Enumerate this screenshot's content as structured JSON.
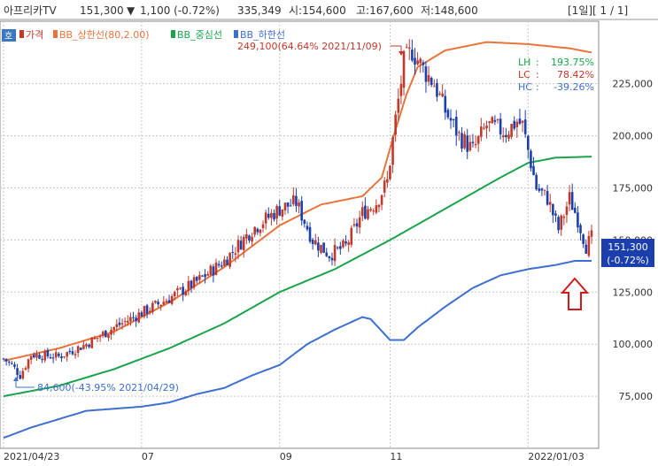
{
  "header": {
    "name": "아프리카TV",
    "price": "151,300",
    "change_arrow": "▼",
    "change": "1,100 (-0.72%)",
    "volume": "335,349",
    "open": "시:154,600",
    "high": "고:167,600",
    "low": "저:148,600",
    "pager": "[1일][ 1 / 1]"
  },
  "ho_button": "호",
  "legend": {
    "items": [
      {
        "label": "가격",
        "color": "#c0392b"
      },
      {
        "label": "BB_상한선(80,2.00)",
        "color": "#e8743b"
      },
      {
        "label": "BB_중심선",
        "color": "#1aa34a"
      },
      {
        "label": "BB_하한선",
        "color": "#3d6fd0"
      }
    ]
  },
  "annotations": {
    "max": "249,100(64.64% 2021/11/09)",
    "min": "84,600(-43.95% 2021/04/29)",
    "stats": [
      {
        "key": "LH",
        "value": "193.75%",
        "color": "#1aa34a"
      },
      {
        "key": "LC",
        "value": "78.42%",
        "color": "#c0392b"
      },
      {
        "key": "HC",
        "value": "-39.26%",
        "color": "#3d6fd0"
      }
    ]
  },
  "price_box": {
    "line1": "151,300",
    "line2": "(-0.72%)",
    "color": "#1c3fae"
  },
  "colors": {
    "up": "#c0392b",
    "down": "#1c3fae",
    "upper": "#e8743b",
    "middle": "#1aa34a",
    "lower": "#3d6fd0",
    "grid": "#c8c8c8",
    "arrow": "#d11a1a"
  },
  "chart_data": {
    "type": "line",
    "title": "",
    "ylim": [
      50000,
      255000
    ],
    "y_ticks": [
      75000,
      100000,
      125000,
      150000,
      175000,
      200000,
      225000
    ],
    "y_tick_labels": [
      "75,000",
      "100,000",
      "125,000",
      "150,000",
      "175,000",
      "200,000",
      "225,000"
    ],
    "x_labels": [
      "2021/04/23",
      "07",
      "09",
      "11",
      "2022/01/03"
    ],
    "x_label_index": [
      0,
      50,
      100,
      140,
      190
    ],
    "n": 214,
    "price_knots": [
      [
        0,
        93000
      ],
      [
        3,
        90000
      ],
      [
        6,
        85000
      ],
      [
        10,
        95000
      ],
      [
        20,
        94000
      ],
      [
        30,
        100000
      ],
      [
        40,
        108000
      ],
      [
        50,
        115000
      ],
      [
        60,
        122000
      ],
      [
        70,
        130000
      ],
      [
        80,
        140000
      ],
      [
        90,
        155000
      ],
      [
        95,
        160000
      ],
      [
        100,
        165000
      ],
      [
        106,
        168000
      ],
      [
        112,
        150000
      ],
      [
        118,
        143000
      ],
      [
        124,
        147000
      ],
      [
        130,
        163000
      ],
      [
        135,
        168000
      ],
      [
        139,
        178000
      ],
      [
        142,
        208000
      ],
      [
        145,
        235000
      ],
      [
        148,
        241000
      ],
      [
        152,
        232000
      ],
      [
        156,
        225000
      ],
      [
        160,
        212000
      ],
      [
        165,
        200000
      ],
      [
        170,
        193000
      ],
      [
        175,
        205000
      ],
      [
        182,
        202000
      ],
      [
        186,
        207000
      ],
      [
        188,
        205000
      ],
      [
        190,
        193000
      ],
      [
        193,
        175000
      ],
      [
        197,
        170000
      ],
      [
        201,
        155000
      ],
      [
        205,
        170000
      ],
      [
        208,
        160000
      ],
      [
        211,
        147000
      ],
      [
        213,
        151000
      ]
    ],
    "upper_knots": [
      [
        0,
        92000
      ],
      [
        20,
        98000
      ],
      [
        40,
        106000
      ],
      [
        60,
        120000
      ],
      [
        80,
        137000
      ],
      [
        100,
        157000
      ],
      [
        115,
        167000
      ],
      [
        130,
        171000
      ],
      [
        137,
        180000
      ],
      [
        142,
        203000
      ],
      [
        146,
        220000
      ],
      [
        150,
        233000
      ],
      [
        160,
        241000
      ],
      [
        175,
        245000
      ],
      [
        190,
        244000
      ],
      [
        205,
        242000
      ],
      [
        213,
        240000
      ]
    ],
    "middle_knots": [
      [
        0,
        75000
      ],
      [
        20,
        80000
      ],
      [
        40,
        88000
      ],
      [
        60,
        98000
      ],
      [
        80,
        110000
      ],
      [
        100,
        125000
      ],
      [
        120,
        136000
      ],
      [
        140,
        150000
      ],
      [
        160,
        165000
      ],
      [
        180,
        180000
      ],
      [
        190,
        187000
      ],
      [
        200,
        189500
      ],
      [
        213,
        190000
      ]
    ],
    "lower_knots": [
      [
        0,
        55000
      ],
      [
        10,
        60000
      ],
      [
        20,
        64000
      ],
      [
        30,
        68000
      ],
      [
        40,
        69000
      ],
      [
        50,
        70000
      ],
      [
        60,
        72000
      ],
      [
        70,
        76000
      ],
      [
        80,
        79000
      ],
      [
        90,
        85000
      ],
      [
        100,
        90000
      ],
      [
        110,
        100000
      ],
      [
        120,
        107000
      ],
      [
        130,
        113000
      ],
      [
        133,
        112000
      ],
      [
        140,
        102000
      ],
      [
        145,
        102000
      ],
      [
        150,
        108000
      ],
      [
        160,
        118000
      ],
      [
        170,
        127000
      ],
      [
        180,
        133000
      ],
      [
        190,
        136000
      ],
      [
        200,
        138000
      ],
      [
        207,
        140000
      ],
      [
        213,
        140000
      ]
    ]
  }
}
